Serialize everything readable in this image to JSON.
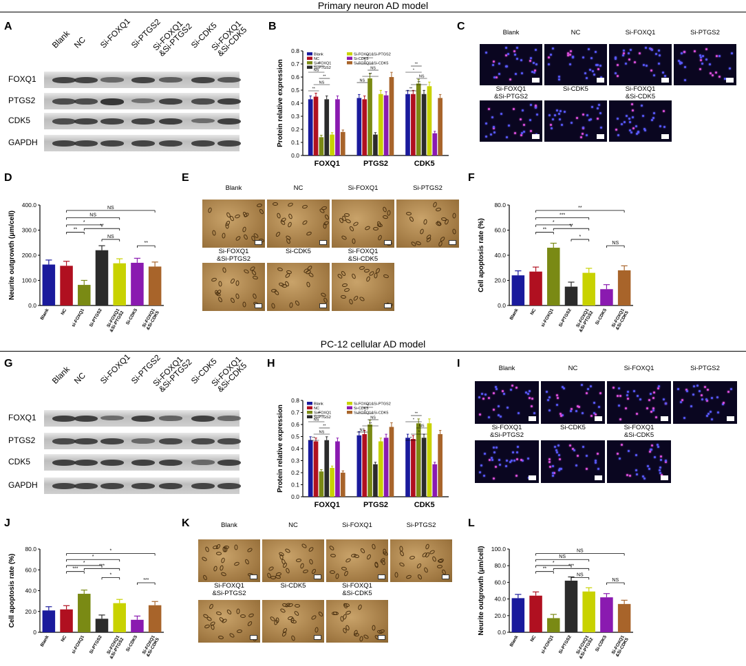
{
  "sections": {
    "top_title": "Primary neuron AD model",
    "bottom_title": "PC-12 cellular AD model"
  },
  "panel_letters": {
    "A": "A",
    "B": "B",
    "C": "C",
    "D": "D",
    "E": "E",
    "F": "F",
    "G": "G",
    "H": "H",
    "I": "I",
    "J": "J",
    "K": "K",
    "L": "L"
  },
  "western": {
    "lanes": [
      "Blank",
      "NC",
      "Si-FOXQ1",
      "Si-PTGS2",
      "Si-FOXQ1\n&Si-PTGS2",
      "Si-CDK5",
      "Si-FOXQ1\n&Si-CDK5"
    ],
    "rows": [
      "FOXQ1",
      "PTGS2",
      "CDK5",
      "GAPDH"
    ]
  },
  "image_labels": {
    "row1": [
      "Blank",
      "NC",
      "Si-FOXQ1",
      "Si-PTGS2"
    ],
    "row2": [
      "Si-FOXQ1\n&Si-PTGS2",
      "Si-CDK5",
      "Si-FOXQ1\n&Si-CDK5"
    ]
  },
  "colors": [
    "#1a1a9c",
    "#b01020",
    "#7a8a14",
    "#2b2b2b",
    "#c8d200",
    "#8a1ab0",
    "#a8642a"
  ],
  "chart_data": [
    {
      "panel": "B",
      "type": "bar",
      "ylabel": "Protein relative expression",
      "ylim": [
        0,
        0.8
      ],
      "yticks": [
        "0.0",
        "0.1",
        "0.2",
        "0.3",
        "0.4",
        "0.5",
        "0.6",
        "0.7",
        "0.8"
      ],
      "categories": [
        "FOXQ1",
        "PTGS2",
        "CDK5"
      ],
      "series": [
        {
          "name": "Blank",
          "values": [
            0.43,
            0.44,
            0.47
          ]
        },
        {
          "name": "NC",
          "values": [
            0.45,
            0.43,
            0.47
          ]
        },
        {
          "name": "Si-FOXQ1",
          "values": [
            0.14,
            0.59,
            0.55
          ]
        },
        {
          "name": "Si-PTGS2",
          "values": [
            0.43,
            0.16,
            0.47
          ]
        },
        {
          "name": "Si-FOXQ1&Si-PTGS2",
          "values": [
            0.16,
            0.47,
            0.53
          ]
        },
        {
          "name": "Si-CDK5",
          "values": [
            0.43,
            0.46,
            0.17
          ]
        },
        {
          "name": "Si-FOXQ1&Si-CDK5",
          "values": [
            0.18,
            0.6,
            0.44
          ]
        }
      ],
      "annotations": [
        "**",
        "NS",
        "**",
        "NS",
        "**",
        "NS",
        "**",
        "NS",
        "*",
        "**",
        "**",
        "**",
        "NS",
        "*",
        "**",
        "*",
        "NS",
        "*",
        "**",
        "NS",
        "**",
        "*"
      ]
    },
    {
      "panel": "D",
      "type": "bar",
      "ylabel": "Neurite outgrowth (μm/cell)",
      "ylim": [
        0,
        400
      ],
      "yticks": [
        "0.0",
        "100.0",
        "200.0",
        "300.0",
        "400.0"
      ],
      "categories": [
        "Blank",
        "NC",
        "si-FOXQ1",
        "Si-PTGS2",
        "Si-FOXQ1\n&Si-PTGS2",
        "Si-CDK5",
        "Si-FOXQ1\n&Si-CDK5"
      ],
      "values": [
        163,
        158,
        82,
        220,
        168,
        170,
        155
      ],
      "annotations": [
        "**",
        "*",
        "NS",
        "NS",
        "**",
        "**",
        "NS"
      ]
    },
    {
      "panel": "F",
      "type": "bar",
      "ylabel": "Cell apoptosis rate (%)",
      "ylim": [
        0,
        80
      ],
      "yticks": [
        "0.0",
        "20.0",
        "40.0",
        "60.0",
        "80.0"
      ],
      "categories": [
        "Blank",
        "NC",
        "si-FOXQ1",
        "Si-PTGS2",
        "Si-FOXQ1\n&Si-PTGS2",
        "Si-CDK5",
        "Si-FOXQ1\n&Si-CDK5"
      ],
      "values": [
        24,
        27,
        46,
        15,
        26,
        13,
        28
      ],
      "annotations": [
        "**",
        "*",
        "*",
        "***",
        "**",
        "NS",
        "**"
      ]
    },
    {
      "panel": "H",
      "type": "bar",
      "ylabel": "Protein relative expression",
      "ylim": [
        0,
        0.8
      ],
      "yticks": [
        "0.0",
        "0.1",
        "0.2",
        "0.3",
        "0.4",
        "0.5",
        "0.6",
        "0.7",
        "0.8"
      ],
      "categories": [
        "FOXQ1",
        "PTGS2",
        "CDK5"
      ],
      "series": [
        {
          "name": "Blank",
          "values": [
            0.47,
            0.51,
            0.49
          ]
        },
        {
          "name": "NC",
          "values": [
            0.46,
            0.52,
            0.48
          ]
        },
        {
          "name": "Si-FOXQ1",
          "values": [
            0.21,
            0.6,
            0.61
          ]
        },
        {
          "name": "Si-PTGS2",
          "values": [
            0.47,
            0.27,
            0.49
          ]
        },
        {
          "name": "Si-FOXQ1&Si-PTGS2",
          "values": [
            0.24,
            0.46,
            0.61
          ]
        },
        {
          "name": "Si-CDK5",
          "values": [
            0.46,
            0.49,
            0.27
          ]
        },
        {
          "name": "Si-FOXQ1&Si-CDK5",
          "values": [
            0.2,
            0.58,
            0.52
          ]
        }
      ],
      "annotations": [
        "**",
        "NS",
        "**",
        "NS",
        "**",
        "NS",
        "**",
        "NS",
        "*",
        "**",
        "*",
        "*",
        "NS",
        "*",
        "**",
        "*",
        "NS",
        "*",
        "**",
        "NS",
        "**",
        "*"
      ]
    },
    {
      "panel": "J",
      "type": "bar",
      "ylabel": "Cell apoptosis rate (%)",
      "ylim": [
        0,
        80
      ],
      "yticks": [
        "0",
        "20.0",
        "40.0",
        "60.0",
        "80.0"
      ],
      "categories": [
        "Blank",
        "NC",
        "si-FOXQ1",
        "Si-PTGS2",
        "Si-FOXQ1\n&Si-PTGS2",
        "Si-CDK5",
        "Si-FOXQ1\n&Si-CDK5"
      ],
      "values": [
        21,
        22,
        37,
        13,
        28,
        12,
        26
      ],
      "annotations": [
        "***",
        "*",
        "*",
        "*",
        "***",
        "***",
        "*"
      ]
    },
    {
      "panel": "L",
      "type": "bar",
      "ylabel": "Neurite outgrowth (μm/cell)",
      "ylim": [
        0,
        80
      ],
      "yticks": [
        "0.0",
        "20.0",
        "40.0",
        "60.0",
        "80.0",
        "100.0"
      ],
      "categories": [
        "Blank",
        "NC",
        "si-FOXQ1",
        "Si-PTGS2",
        "Si-FOXQ1\n&Si-PTGS2",
        "Si-CDK5",
        "Si-FOXQ1\n&Si-CDK5"
      ],
      "values": [
        41,
        44,
        17,
        62,
        49,
        42,
        34
      ],
      "annotations": [
        "**",
        "*",
        "NS",
        "NS",
        "***",
        "NS",
        "NS"
      ]
    }
  ]
}
